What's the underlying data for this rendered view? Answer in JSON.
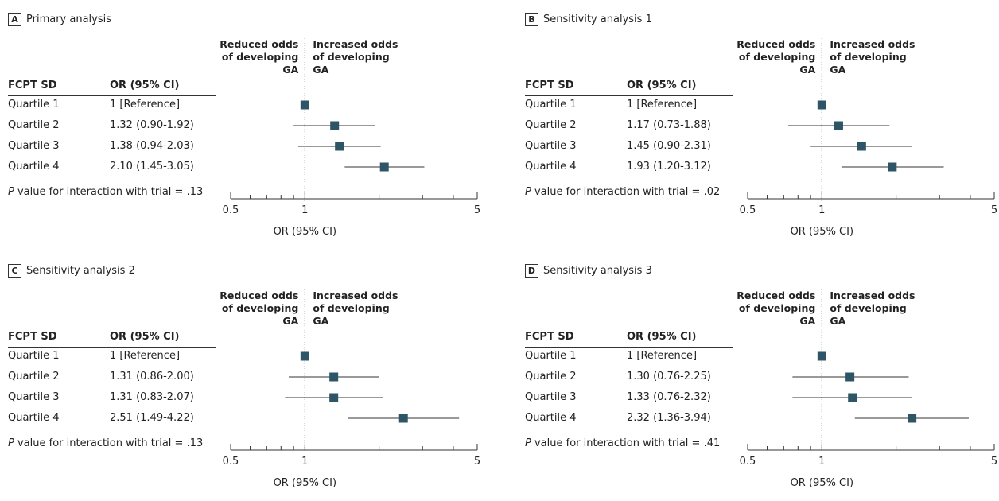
{
  "labels": {
    "reduced": [
      "Reduced odds",
      "of developing",
      "GA"
    ],
    "increased": [
      "Increased odds",
      "of developing",
      "GA"
    ],
    "col_group": "FCPT SD",
    "col_or": "OR (95% CI)",
    "xlabel": "OR (95% CI)",
    "ticks": [
      "0.5",
      "1",
      "5"
    ]
  },
  "colors": {
    "marker": "#2e5566",
    "line": "#333333"
  },
  "chart_data": [
    {
      "type": "forest",
      "letter": "A",
      "title": "Primary analysis",
      "pvalue_text": "value for interaction with trial = .13",
      "rows": [
        {
          "label": "Quartile 1",
          "or_text": "1 [Reference]",
          "or": 1.0,
          "lo": 1.0,
          "hi": 1.0
        },
        {
          "label": "Quartile 2",
          "or_text": "1.32 (0.90-1.92)",
          "or": 1.32,
          "lo": 0.9,
          "hi": 1.92
        },
        {
          "label": "Quartile 3",
          "or_text": "1.38 (0.94-2.03)",
          "or": 1.38,
          "lo": 0.94,
          "hi": 2.03
        },
        {
          "label": "Quartile 4",
          "or_text": "2.10 (1.45-3.05)",
          "or": 2.1,
          "lo": 1.45,
          "hi": 3.05
        }
      ],
      "xlim": [
        0.5,
        5
      ],
      "xscale": "log"
    },
    {
      "type": "forest",
      "letter": "B",
      "title": "Sensitivity analysis 1",
      "pvalue_text": "value for interaction with trial = .02",
      "rows": [
        {
          "label": "Quartile 1",
          "or_text": "1 [Reference]",
          "or": 1.0,
          "lo": 1.0,
          "hi": 1.0
        },
        {
          "label": "Quartile 2",
          "or_text": "1.17 (0.73-1.88)",
          "or": 1.17,
          "lo": 0.73,
          "hi": 1.88
        },
        {
          "label": "Quartile 3",
          "or_text": "1.45 (0.90-2.31)",
          "or": 1.45,
          "lo": 0.9,
          "hi": 2.31
        },
        {
          "label": "Quartile 4",
          "or_text": "1.93 (1.20-3.12)",
          "or": 1.93,
          "lo": 1.2,
          "hi": 3.12
        }
      ],
      "xlim": [
        0.5,
        5
      ],
      "xscale": "log"
    },
    {
      "type": "forest",
      "letter": "C",
      "title": "Sensitivity analysis 2",
      "pvalue_text": "value for interaction with trial = .13",
      "rows": [
        {
          "label": "Quartile 1",
          "or_text": "1 [Reference]",
          "or": 1.0,
          "lo": 1.0,
          "hi": 1.0
        },
        {
          "label": "Quartile 2",
          "or_text": "1.31 (0.86-2.00)",
          "or": 1.31,
          "lo": 0.86,
          "hi": 2.0
        },
        {
          "label": "Quartile 3",
          "or_text": "1.31 (0.83-2.07)",
          "or": 1.31,
          "lo": 0.83,
          "hi": 2.07
        },
        {
          "label": "Quartile 4",
          "or_text": "2.51 (1.49-4.22)",
          "or": 2.51,
          "lo": 1.49,
          "hi": 4.22
        }
      ],
      "xlim": [
        0.5,
        5
      ],
      "xscale": "log"
    },
    {
      "type": "forest",
      "letter": "D",
      "title": "Sensitivity analysis 3",
      "pvalue_text": "value for interaction with trial = .41",
      "rows": [
        {
          "label": "Quartile 1",
          "or_text": "1 [Reference]",
          "or": 1.0,
          "lo": 1.0,
          "hi": 1.0
        },
        {
          "label": "Quartile 2",
          "or_text": "1.30 (0.76-2.25)",
          "or": 1.3,
          "lo": 0.76,
          "hi": 2.25
        },
        {
          "label": "Quartile 3",
          "or_text": "1.33 (0.76-2.32)",
          "or": 1.33,
          "lo": 0.76,
          "hi": 2.32
        },
        {
          "label": "Quartile 4",
          "or_text": "2.32 (1.36-3.94)",
          "or": 2.32,
          "lo": 1.36,
          "hi": 3.94
        }
      ],
      "xlim": [
        0.5,
        5
      ],
      "xscale": "log"
    }
  ]
}
